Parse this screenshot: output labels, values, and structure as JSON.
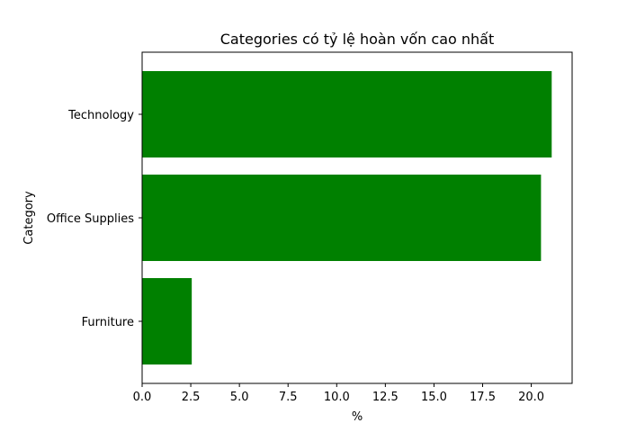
{
  "chart_data": {
    "type": "bar",
    "orientation": "horizontal",
    "title": "Categories có tỷ lệ hoàn vốn cao nhất",
    "xlabel": "%",
    "ylabel": "Category",
    "categories": [
      "Furniture",
      "Office Supplies",
      "Technology"
    ],
    "values": [
      2.55,
      20.5,
      21.05
    ],
    "xlim": [
      0,
      22.1
    ],
    "xticks": [
      0.0,
      2.5,
      5.0,
      7.5,
      10.0,
      12.5,
      15.0,
      17.5,
      20.0
    ],
    "xtick_labels": [
      "0.0",
      "2.5",
      "5.0",
      "7.5",
      "10.0",
      "12.5",
      "15.0",
      "17.5",
      "20.0"
    ],
    "bar_color": "#008000",
    "grid": false,
    "legend": "none"
  }
}
